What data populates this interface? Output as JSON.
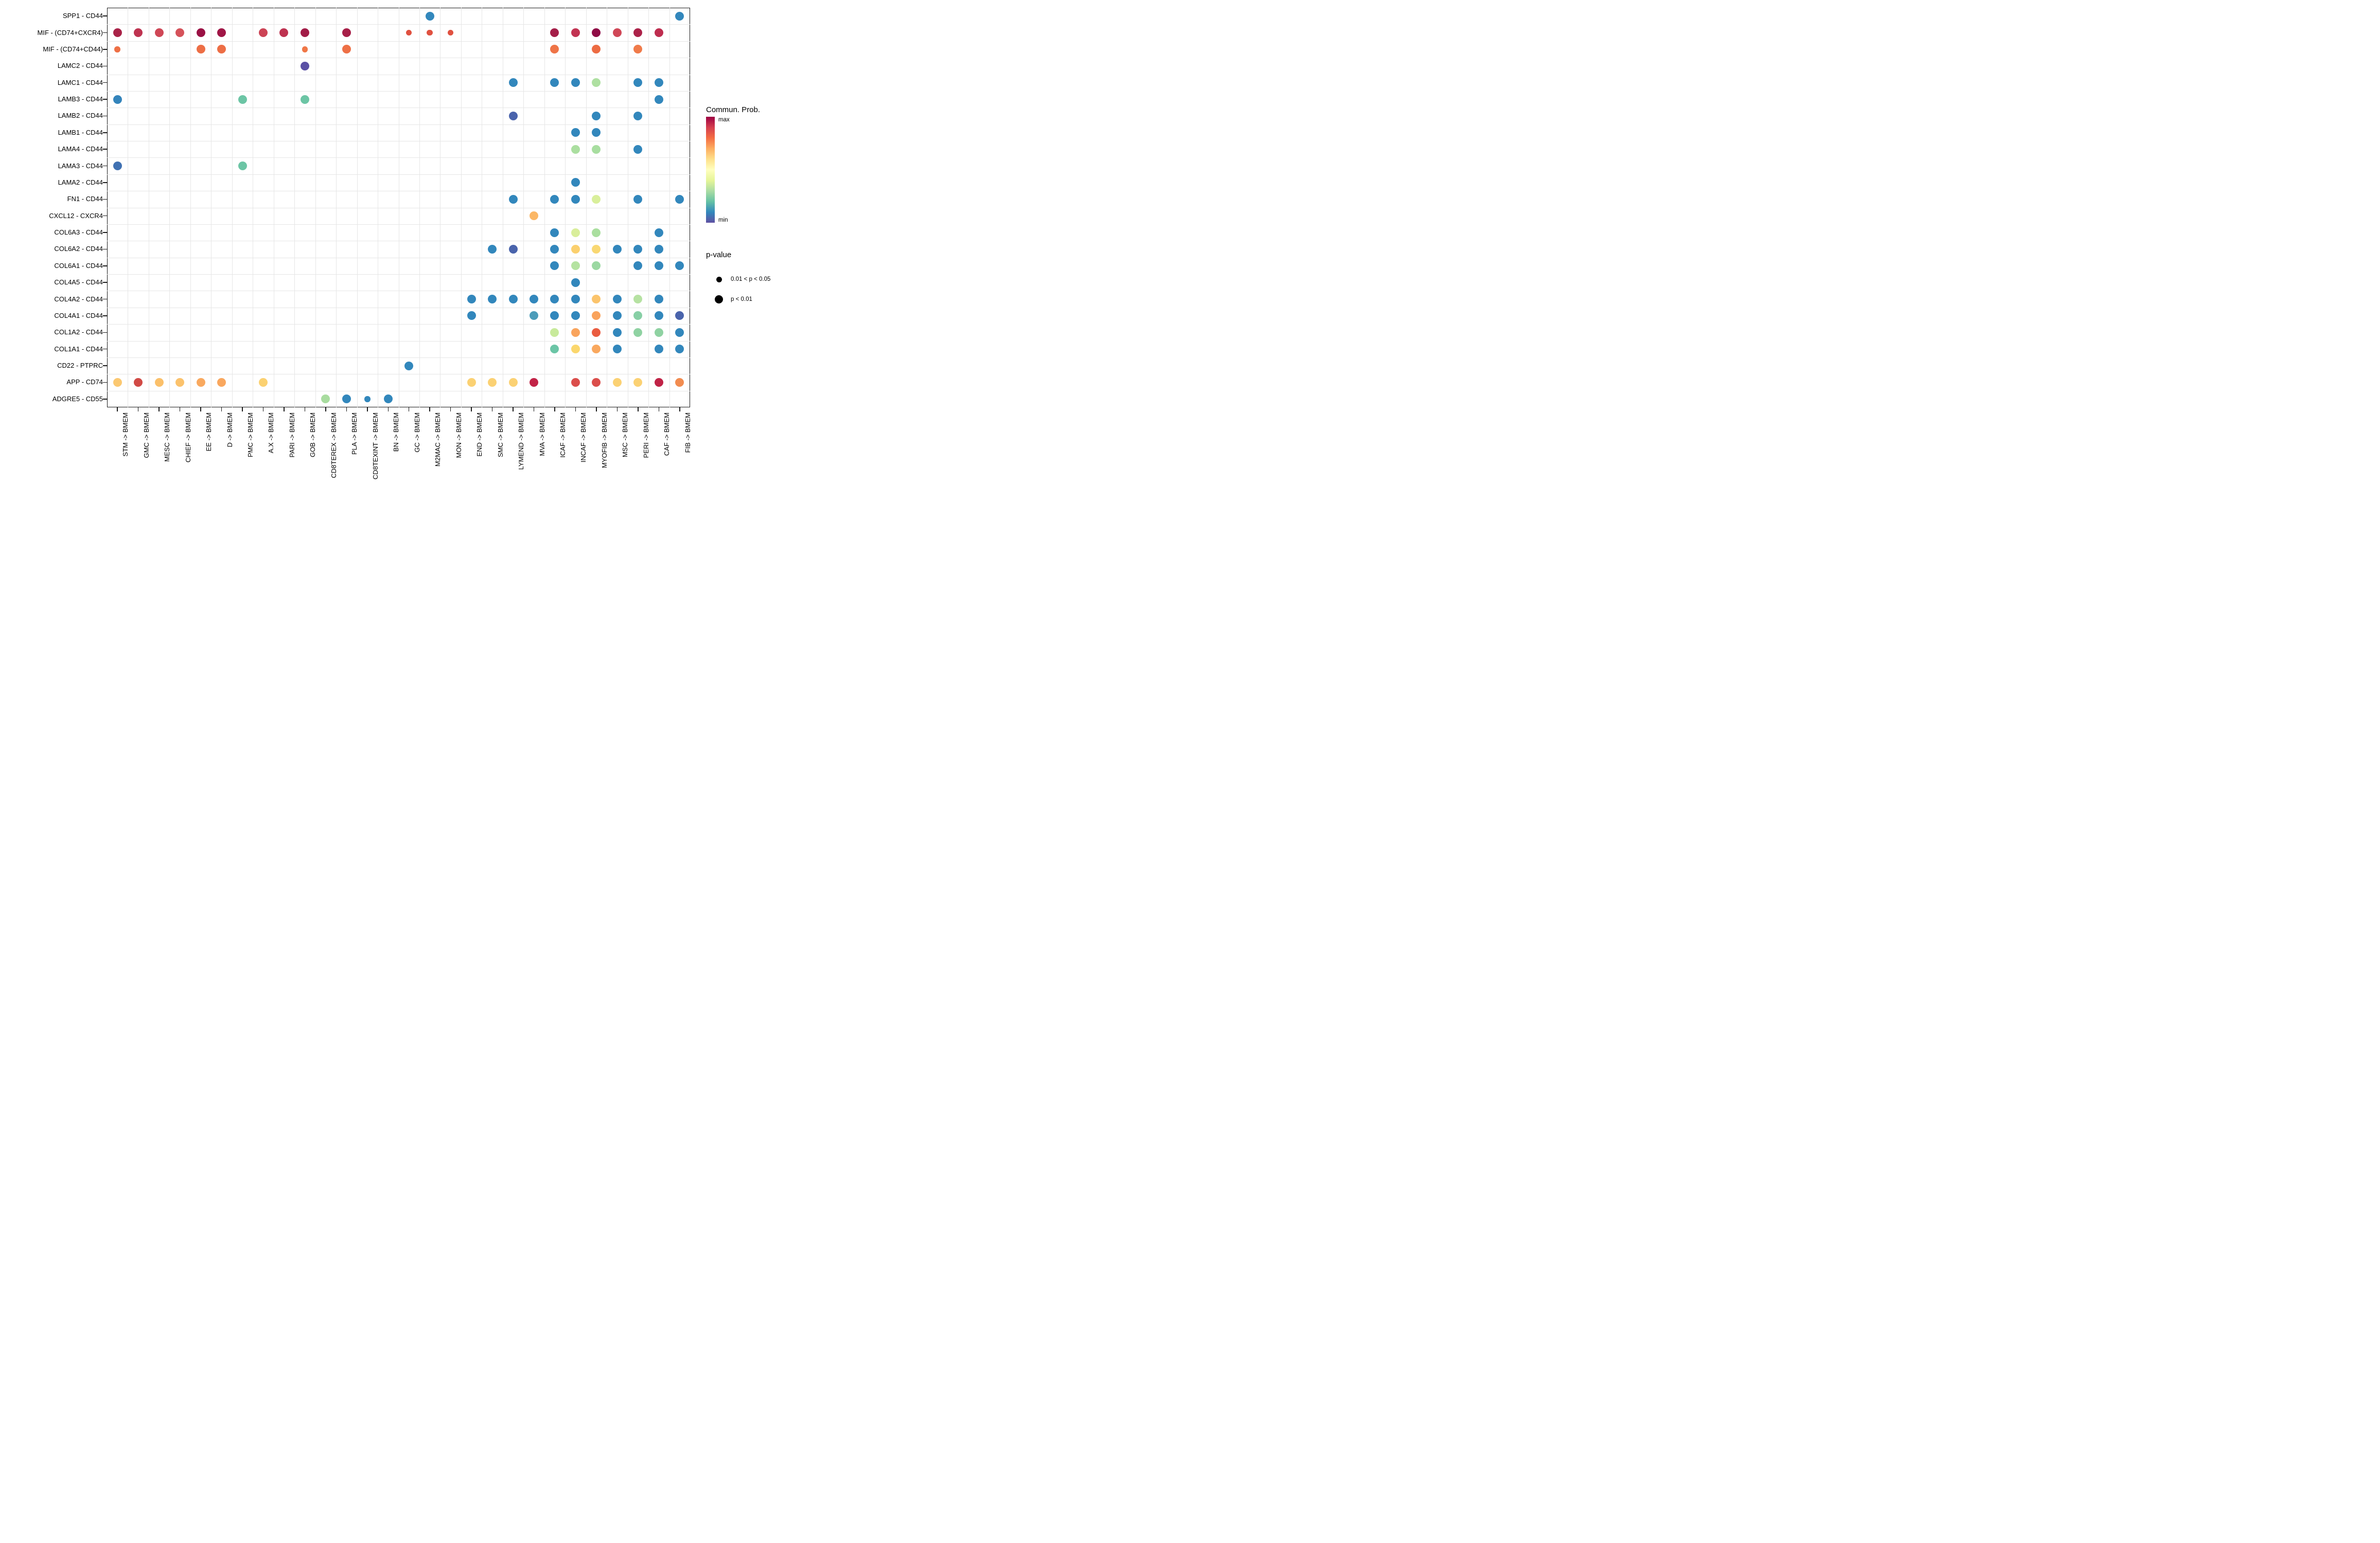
{
  "chart_data": {
    "type": "scatter",
    "subtype": "bubble-dotplot",
    "title": "",
    "xlabel": "",
    "ylabel": "",
    "grid": "on",
    "x_categories": [
      "STM -> BMEM",
      "GMC -> BMEM",
      "MESC -> BMEM",
      "CHIEF -> BMEM",
      "EE -> BMEM",
      "D -> BMEM",
      "PMC -> BMEM",
      "A.X -> BMEM",
      "PARI -> BMEM",
      "GOB -> BMEM",
      "CD8TEREX -> BMEM",
      "PLA -> BMEM",
      "CD8TEXINT -> BMEM",
      "BN -> BMEM",
      "GC -> BMEM",
      "M2MAC -> BMEM",
      "MON -> BMEM",
      "END -> BMEM",
      "SMC -> BMEM",
      "LYMEND -> BMEM",
      "MVA -> BMEM",
      "ICAF -> BMEM",
      "INCAF -> BMEM",
      "MYOFIB -> BMEM",
      "MSC -> BMEM",
      "PERI -> BMEM",
      "CAF -> BMEM",
      "FIB -> BMEM"
    ],
    "y_categories": [
      "SPP1 - CD44",
      "MIF - (CD74+CXCR4)",
      "MIF - (CD74+CD44)",
      "LAMC2 - CD44",
      "LAMC1 - CD44",
      "LAMB3 - CD44",
      "LAMB2 - CD44",
      "LAMB1 - CD44",
      "LAMA4 - CD44",
      "LAMA3 - CD44",
      "LAMA2 - CD44",
      "FN1 - CD44",
      "CXCL12 - CXCR4",
      "COL6A3 - CD44",
      "COL6A2 - CD44",
      "COL6A1 - CD44",
      "COL4A5 - CD44",
      "COL4A2 - CD44",
      "COL4A1 - CD44",
      "COL1A2 - CD44",
      "COL1A1 - CD44",
      "CD22 - PTPRC",
      "APP - CD74",
      "ADGRE5 - CD55"
    ],
    "dot_sizes_px": {
      "L": 17,
      "S": 11.5
    },
    "size_meaning": {
      "L": "p < 0.01",
      "S": "0.01 < p < 0.05"
    },
    "color_meaning": "communication probability, Spectral palette: min = purple-blue, max = dark red",
    "dots": [
      [
        0,
        15,
        "#3287BC",
        "L"
      ],
      [
        0,
        27,
        "#3287BC",
        "L"
      ],
      [
        1,
        0,
        "#A92348",
        "L"
      ],
      [
        1,
        1,
        "#BE3350",
        "L"
      ],
      [
        1,
        2,
        "#CF4756",
        "L"
      ],
      [
        1,
        3,
        "#D5525A",
        "L"
      ],
      [
        1,
        4,
        "#9A1144",
        "L"
      ],
      [
        1,
        5,
        "#A01646",
        "L"
      ],
      [
        1,
        7,
        "#CC4355",
        "L"
      ],
      [
        1,
        8,
        "#BE3250",
        "L"
      ],
      [
        1,
        9,
        "#A21C47",
        "L"
      ],
      [
        1,
        11,
        "#A71F48",
        "L"
      ],
      [
        1,
        14,
        "#E05140",
        "S"
      ],
      [
        1,
        15,
        "#E05140",
        "S"
      ],
      [
        1,
        16,
        "#E05140",
        "S"
      ],
      [
        1,
        21,
        "#A41E48",
        "L"
      ],
      [
        1,
        22,
        "#C23352",
        "L"
      ],
      [
        1,
        23,
        "#8F0B45",
        "L"
      ],
      [
        1,
        24,
        "#D04757",
        "L"
      ],
      [
        1,
        25,
        "#AC2249",
        "L"
      ],
      [
        1,
        26,
        "#BE2D4F",
        "L"
      ],
      [
        2,
        0,
        "#EE7046",
        "S"
      ],
      [
        2,
        4,
        "#ED6E45",
        "L"
      ],
      [
        2,
        5,
        "#ED6E45",
        "L"
      ],
      [
        2,
        9,
        "#F07747",
        "S"
      ],
      [
        2,
        11,
        "#EE7046",
        "L"
      ],
      [
        2,
        21,
        "#EF7447",
        "L"
      ],
      [
        2,
        23,
        "#ED6C43",
        "L"
      ],
      [
        2,
        25,
        "#F07B4A",
        "L"
      ],
      [
        3,
        9,
        "#5B51A5",
        "L"
      ],
      [
        4,
        19,
        "#3287BC",
        "L"
      ],
      [
        4,
        21,
        "#3287BC",
        "L"
      ],
      [
        4,
        22,
        "#3287BC",
        "L"
      ],
      [
        4,
        23,
        "#AEE0A1",
        "L"
      ],
      [
        4,
        25,
        "#3287BC",
        "L"
      ],
      [
        4,
        26,
        "#3287BC",
        "L"
      ],
      [
        5,
        0,
        "#3484BB",
        "L"
      ],
      [
        5,
        6,
        "#6CC5A5",
        "L"
      ],
      [
        5,
        9,
        "#6CC5A5",
        "L"
      ],
      [
        5,
        26,
        "#3287BC",
        "L"
      ],
      [
        6,
        19,
        "#4A64AC",
        "L"
      ],
      [
        6,
        23,
        "#3287BC",
        "L"
      ],
      [
        6,
        25,
        "#3287BC",
        "L"
      ],
      [
        7,
        22,
        "#3287BC",
        "L"
      ],
      [
        7,
        23,
        "#3287BC",
        "L"
      ],
      [
        8,
        22,
        "#ABDFA0",
        "L"
      ],
      [
        8,
        23,
        "#A8DEA0",
        "L"
      ],
      [
        8,
        25,
        "#3287BC",
        "L"
      ],
      [
        9,
        0,
        "#4071B2",
        "L"
      ],
      [
        9,
        6,
        "#6CC5A5",
        "L"
      ],
      [
        10,
        22,
        "#3287BC",
        "L"
      ],
      [
        11,
        19,
        "#3287BC",
        "L"
      ],
      [
        11,
        21,
        "#3287BC",
        "L"
      ],
      [
        11,
        22,
        "#3287BC",
        "L"
      ],
      [
        11,
        23,
        "#D9EF9B",
        "L"
      ],
      [
        11,
        25,
        "#3287BC",
        "L"
      ],
      [
        11,
        27,
        "#3287BC",
        "L"
      ],
      [
        12,
        20,
        "#FBB766",
        "L"
      ],
      [
        13,
        21,
        "#3287BC",
        "L"
      ],
      [
        13,
        22,
        "#D9EE9B",
        "L"
      ],
      [
        13,
        23,
        "#AADF9F",
        "L"
      ],
      [
        13,
        26,
        "#3287BC",
        "L"
      ],
      [
        14,
        18,
        "#3287BC",
        "L"
      ],
      [
        14,
        19,
        "#4A64AC",
        "L"
      ],
      [
        14,
        21,
        "#3287BC",
        "L"
      ],
      [
        14,
        22,
        "#FBD06E",
        "L"
      ],
      [
        14,
        23,
        "#F9D873",
        "L"
      ],
      [
        14,
        24,
        "#3287BC",
        "L"
      ],
      [
        14,
        25,
        "#3287BC",
        "L"
      ],
      [
        14,
        26,
        "#3287BC",
        "L"
      ],
      [
        15,
        21,
        "#3287BC",
        "L"
      ],
      [
        15,
        22,
        "#B5E3A1",
        "L"
      ],
      [
        15,
        23,
        "#9BD8A2",
        "L"
      ],
      [
        15,
        25,
        "#3287BC",
        "L"
      ],
      [
        15,
        26,
        "#3287BC",
        "L"
      ],
      [
        15,
        27,
        "#3287BC",
        "L"
      ],
      [
        16,
        22,
        "#3287BC",
        "L"
      ],
      [
        17,
        17,
        "#3287BC",
        "L"
      ],
      [
        17,
        18,
        "#3287BC",
        "L"
      ],
      [
        17,
        19,
        "#3287BC",
        "L"
      ],
      [
        17,
        20,
        "#3287BC",
        "L"
      ],
      [
        17,
        21,
        "#3287BC",
        "L"
      ],
      [
        17,
        22,
        "#3287BC",
        "L"
      ],
      [
        17,
        23,
        "#FBC46C",
        "L"
      ],
      [
        17,
        24,
        "#3287BC",
        "L"
      ],
      [
        17,
        25,
        "#B6E2A2",
        "L"
      ],
      [
        17,
        26,
        "#3287BC",
        "L"
      ],
      [
        18,
        17,
        "#3287BC",
        "L"
      ],
      [
        18,
        20,
        "#4C9CB9",
        "L"
      ],
      [
        18,
        21,
        "#3287BC",
        "L"
      ],
      [
        18,
        22,
        "#3287BC",
        "L"
      ],
      [
        18,
        23,
        "#F9A35C",
        "L"
      ],
      [
        18,
        24,
        "#3287BC",
        "L"
      ],
      [
        18,
        25,
        "#87CFA5",
        "L"
      ],
      [
        18,
        26,
        "#3287BC",
        "L"
      ],
      [
        18,
        27,
        "#4A64AC",
        "L"
      ],
      [
        19,
        21,
        "#C8EA9B",
        "L"
      ],
      [
        19,
        22,
        "#F9A45D",
        "L"
      ],
      [
        19,
        23,
        "#EA5C40",
        "L"
      ],
      [
        19,
        24,
        "#3287BC",
        "L"
      ],
      [
        19,
        25,
        "#8FD2A2",
        "L"
      ],
      [
        19,
        26,
        "#8FD2A2",
        "L"
      ],
      [
        19,
        27,
        "#3287BC",
        "L"
      ],
      [
        20,
        21,
        "#6BC5A6",
        "L"
      ],
      [
        20,
        22,
        "#FBD76D",
        "L"
      ],
      [
        20,
        23,
        "#F9A85E",
        "L"
      ],
      [
        20,
        24,
        "#3287BC",
        "L"
      ],
      [
        20,
        26,
        "#3287BC",
        "L"
      ],
      [
        20,
        27,
        "#3287BC",
        "L"
      ],
      [
        21,
        14,
        "#3287BC",
        "L"
      ],
      [
        22,
        0,
        "#FBC871",
        "L"
      ],
      [
        22,
        1,
        "#D14A45",
        "L"
      ],
      [
        22,
        2,
        "#FBC06A",
        "L"
      ],
      [
        22,
        3,
        "#FBC26C",
        "L"
      ],
      [
        22,
        4,
        "#F9A95F",
        "L"
      ],
      [
        22,
        5,
        "#F9A75E",
        "L"
      ],
      [
        22,
        7,
        "#FBD171",
        "L"
      ],
      [
        22,
        17,
        "#FBD173",
        "L"
      ],
      [
        22,
        18,
        "#FBD173",
        "L"
      ],
      [
        22,
        19,
        "#FBD173",
        "L"
      ],
      [
        22,
        20,
        "#C22347",
        "L"
      ],
      [
        22,
        22,
        "#DB4E4B",
        "L"
      ],
      [
        22,
        23,
        "#DB4E4B",
        "L"
      ],
      [
        22,
        24,
        "#FBD173",
        "L"
      ],
      [
        22,
        25,
        "#FBD173",
        "L"
      ],
      [
        22,
        26,
        "#C02346",
        "L"
      ],
      [
        22,
        27,
        "#F28C50",
        "L"
      ],
      [
        23,
        10,
        "#A8DC9F",
        "L"
      ],
      [
        23,
        11,
        "#3287BC",
        "L"
      ],
      [
        23,
        12,
        "#3287BC",
        "S"
      ],
      [
        23,
        13,
        "#3287BC",
        "L"
      ]
    ],
    "legend": {
      "colorbar_title": "max/min communication probability",
      "position": "right",
      "gradient_top_to_bottom": [
        "#9E0142",
        "#D53E4F",
        "#F46D43",
        "#FDAE61",
        "#FEE08B",
        "#FFFFBF",
        "#E6F598",
        "#ABDDA4",
        "#66C2A5",
        "#3288BD",
        "#5E4FA2"
      ]
    }
  },
  "legend_text": {
    "commun_prob_title": "Commun. Prob.",
    "max_label": "max",
    "min_label": "min",
    "pvalue_title": "p-value",
    "pvalue_small_label": "0.01 < p < 0.05",
    "pvalue_large_label": "p < 0.01"
  }
}
